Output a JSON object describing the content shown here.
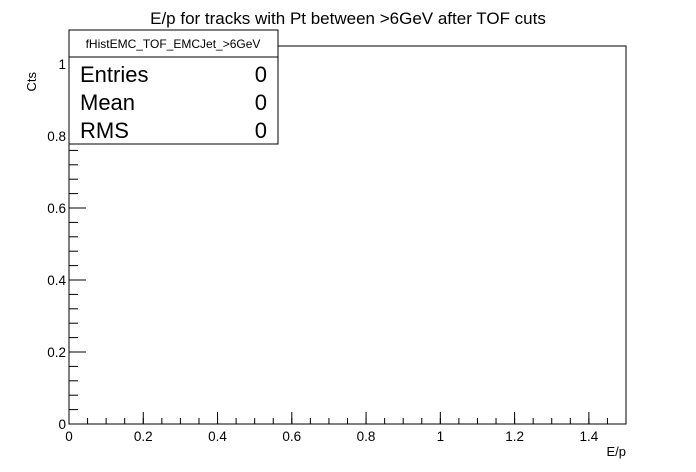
{
  "chart_data": {
    "type": "bar",
    "title": "E/p for tracks with Pt between >6GeV after TOF cuts",
    "xlabel": "E/p",
    "ylabel": "Cts",
    "xlim": [
      0,
      1.5
    ],
    "ylim": [
      0,
      1.05
    ],
    "x_ticks": [
      "0",
      "0.2",
      "0.4",
      "0.6",
      "0.8",
      "1",
      "1.2",
      "1.4"
    ],
    "y_ticks": [
      "0",
      "0.2",
      "0.4",
      "0.6",
      "0.8",
      "1"
    ],
    "values": [],
    "grid": false,
    "stats_box": {
      "name": "fHistEMC_TOF_EMCJet_>6GeV",
      "rows": [
        {
          "label": "Entries",
          "value": "0"
        },
        {
          "label": "Mean",
          "value": "0"
        },
        {
          "label": "RMS",
          "value": "0"
        }
      ]
    }
  }
}
